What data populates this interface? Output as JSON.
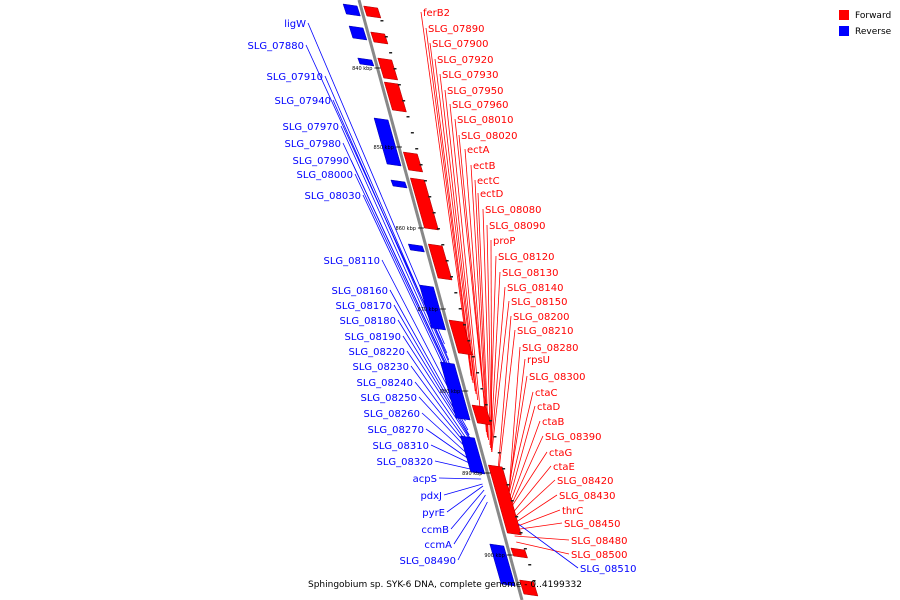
{
  "caption": "Sphingobium sp. SYK-6 DNA, complete genome - 0..4199332",
  "legend": [
    {
      "label": "Forward",
      "color": "#ff0000"
    },
    {
      "label": "Reverse",
      "color": "#0000ff"
    }
  ],
  "colors": {
    "forward": "#ff0000",
    "reverse": "#0000ff",
    "backbone": "#888888"
  },
  "ticks": [
    "840 kbp",
    "850 kbp",
    "860 kbp",
    "870 kbp",
    "880 kbp",
    "890 kbp",
    "900 kbp"
  ],
  "forward_labels": [
    "ferB2",
    "SLG_07890",
    "SLG_07900",
    "SLG_07920",
    "SLG_07930",
    "SLG_07950",
    "SLG_07960",
    "SLG_08010",
    "SLG_08020",
    "ectA",
    "ectB",
    "ectC",
    "ectD",
    "SLG_08080",
    "SLG_08090",
    "proP",
    "SLG_08120",
    "SLG_08130",
    "SLG_08140",
    "SLG_08150",
    "SLG_08200",
    "SLG_08210",
    "SLG_08280",
    "rpsU",
    "SLG_08300",
    "ctaC",
    "ctaD",
    "ctaB",
    "SLG_08390",
    "ctaG",
    "ctaE",
    "SLG_08420",
    "SLG_08430",
    "thrC",
    "SLG_08450",
    "SLG_08480",
    "SLG_08500"
  ],
  "reverse_labels": [
    "ligW",
    "SLG_07880",
    "SLG_07910",
    "SLG_07940",
    "SLG_07970",
    "SLG_07980",
    "SLG_07990",
    "SLG_08000",
    "SLG_08030",
    "SLG_08110",
    "SLG_08160",
    "SLG_08170",
    "SLG_08180",
    "SLG_08190",
    "SLG_08220",
    "SLG_08230",
    "SLG_08240",
    "SLG_08250",
    "SLG_08260",
    "SLG_08270",
    "SLG_08310",
    "SLG_08320",
    "acpS",
    "pdxJ",
    "pyrE",
    "ccmB",
    "ccmA",
    "SLG_08490",
    "SLG_08510"
  ]
}
